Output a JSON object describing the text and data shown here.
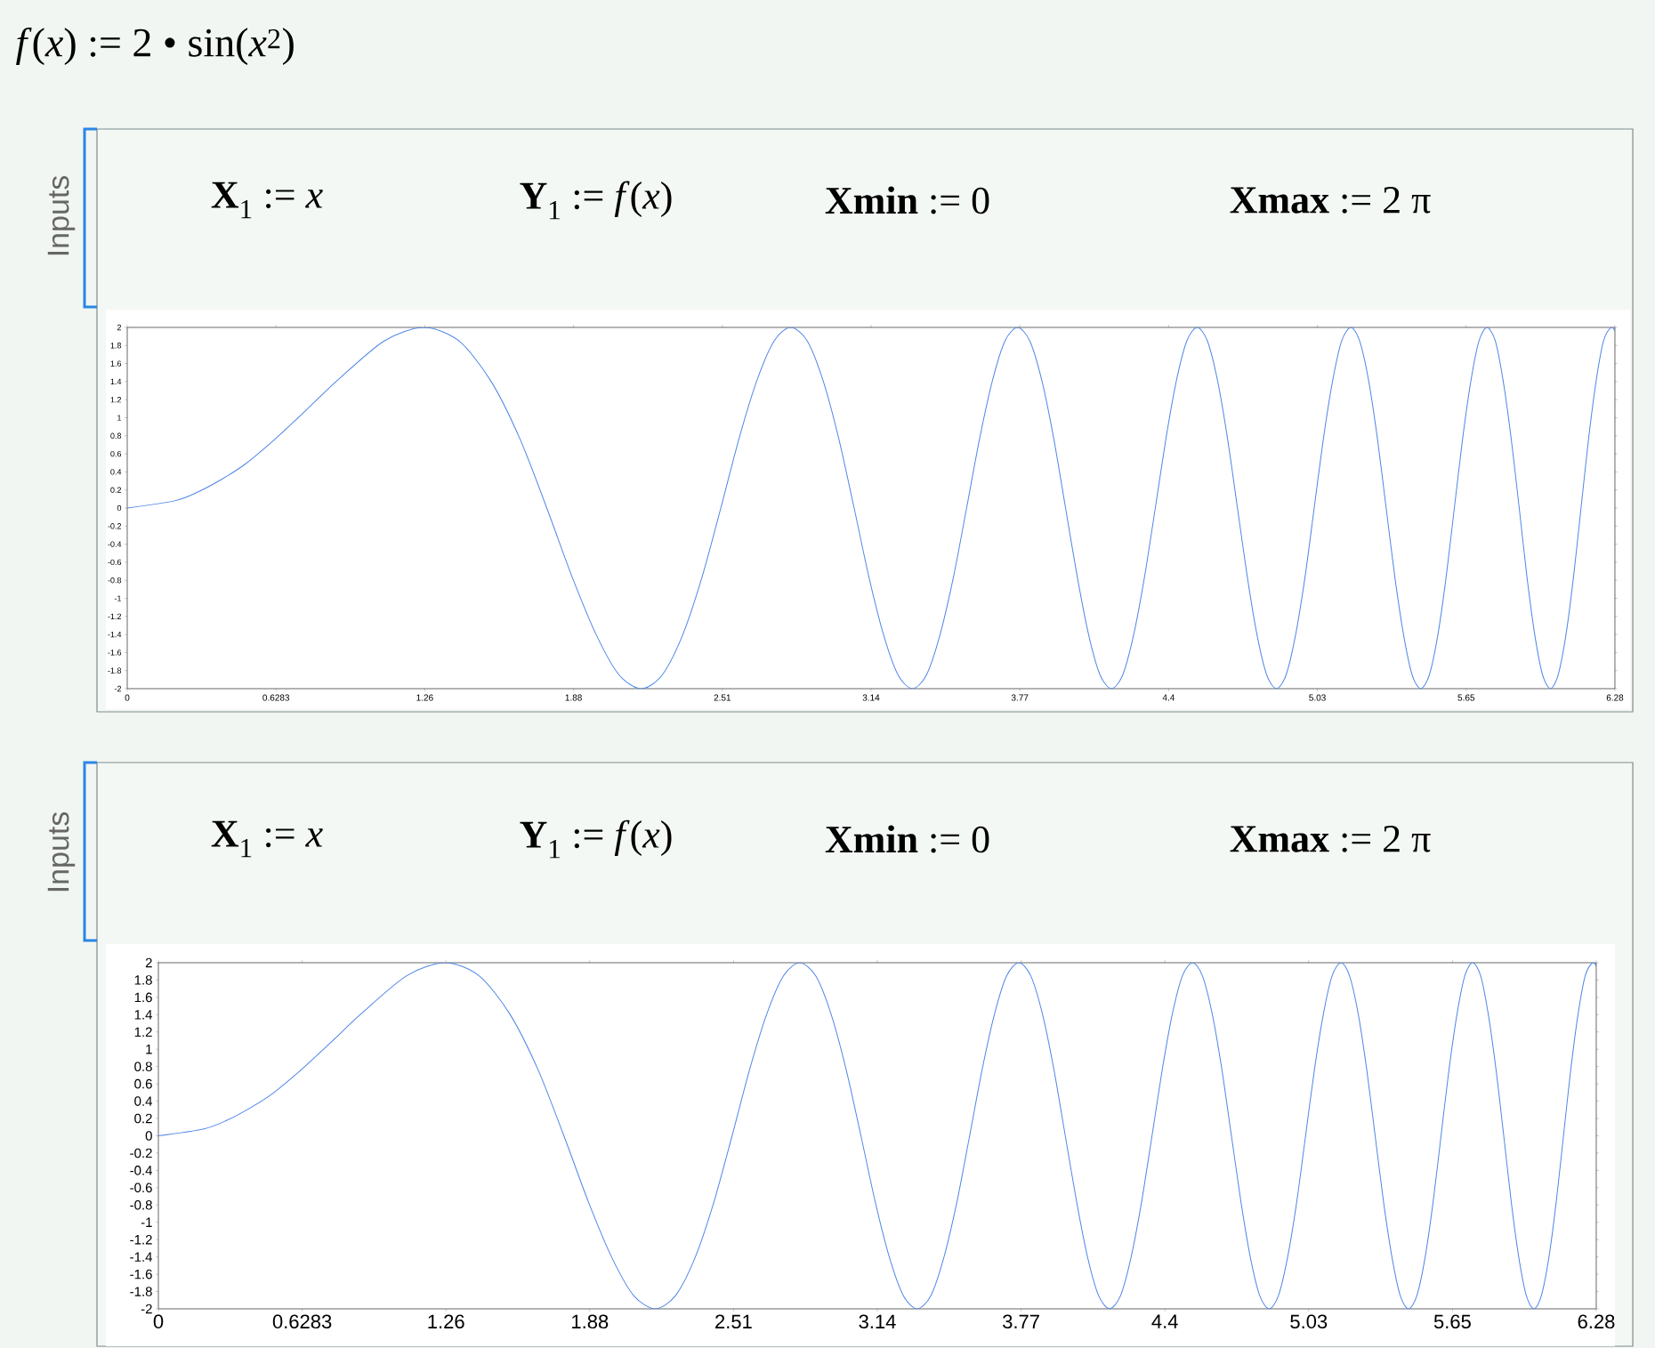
{
  "chart_data": [
    {
      "type": "line",
      "title": "*f*(*x*) := 2 • sin(*x*$^{2}$)",
      "annotations": [
        "Inputs",
        "**X**$_{1}$ := *x*",
        "**Y**$_{1}$ := *f*(*x*)",
        "**Xmin** := 0",
        "**Xmax** := 2 π"
      ],
      "series": [
        {
          "color": "#4f86e8",
          "x": [
            0,
            0.2,
            0.3,
            0.4,
            0.5,
            0.627,
            0.75,
            0.886,
            1.085,
            1.253,
            1.401,
            1.535,
            1.658,
            1.772,
            1.88,
            1.982,
            2.078,
            2.171,
            2.259,
            2.345,
            2.427,
            2.507,
            2.584,
            2.659,
            2.732,
            2.802,
            2.872,
            2.939,
            3.005,
            3.07,
            3.133,
            3.195,
            3.256,
            3.316,
            3.375,
            3.432,
            3.489,
            3.545,
            3.6,
            3.654,
            3.707,
            3.76,
            3.812,
            3.863,
            3.913,
            3.963,
            4.013,
            4.061,
            4.109,
            4.157,
            4.204,
            4.25,
            4.296,
            4.342,
            4.387,
            4.431,
            4.475,
            4.519,
            4.562,
            4.605,
            4.647,
            4.689,
            4.731,
            4.772,
            4.813,
            4.854,
            4.894,
            4.934,
            4.974,
            5.013,
            5.052,
            5.091,
            5.129,
            5.168,
            5.205,
            5.243,
            5.28,
            5.317,
            5.354,
            5.391,
            5.427,
            5.463,
            5.499,
            5.535,
            5.57,
            5.605,
            5.64,
            5.675,
            5.709,
            5.743,
            5.778,
            5.811,
            5.845,
            5.879,
            5.912,
            5.945,
            5.978,
            6.011,
            6.043,
            6.076,
            6.108,
            6.14,
            6.172,
            6.204,
            6.235,
            6.267,
            6.283
          ],
          "values": [
            0,
            0.08,
            0.18,
            0.32,
            0.49,
            0.77,
            1.07,
            1.41,
            1.85,
            2,
            1.85,
            1.41,
            0.77,
            0,
            -0.77,
            -1.41,
            -1.85,
            -2,
            -1.85,
            -1.41,
            -0.77,
            0,
            0.77,
            1.41,
            1.85,
            2,
            1.85,
            1.41,
            0.77,
            0,
            -0.77,
            -1.41,
            -1.85,
            -2,
            -1.85,
            -1.41,
            -0.77,
            0,
            0.77,
            1.41,
            1.85,
            2,
            1.85,
            1.41,
            0.77,
            0,
            -0.77,
            -1.41,
            -1.85,
            -2,
            -1.85,
            -1.41,
            -0.77,
            0,
            0.77,
            1.41,
            1.85,
            2,
            1.85,
            1.41,
            0.77,
            0,
            -0.77,
            -1.41,
            -1.85,
            -2,
            -1.85,
            -1.41,
            -0.77,
            0,
            0.77,
            1.41,
            1.85,
            2,
            1.85,
            1.41,
            0.77,
            0,
            -0.77,
            -1.41,
            -1.85,
            -2,
            -1.85,
            -1.41,
            -0.77,
            0,
            0.77,
            1.41,
            1.85,
            2,
            1.85,
            1.41,
            0.77,
            0,
            -0.77,
            -1.41,
            -1.85,
            -2,
            -1.85,
            -1.41,
            -0.77,
            0,
            0.77,
            1.41,
            1.85,
            2,
            1.96
          ]
        }
      ],
      "xlim": [
        0,
        6.2832
      ],
      "ylim": [
        -2,
        2
      ],
      "xticks": [
        0,
        0.6283,
        {
          "value": 1.2566,
          "label": "1.26"
        },
        {
          "value": 1.885,
          "label": "1.88"
        },
        {
          "value": 2.5133,
          "label": "2.51"
        },
        {
          "value": 3.1416,
          "label": "3.14"
        },
        {
          "value": 3.7699,
          "label": "3.77"
        },
        {
          "value": 4.3982,
          "label": "4.4"
        },
        {
          "value": 5.0265,
          "label": "5.03"
        },
        {
          "value": 5.6549,
          "label": "5.65"
        },
        {
          "value": 6.2832,
          "label": "6.28"
        }
      ],
      "yticks": [
        -2,
        -1.8,
        -1.6,
        -1.4,
        -1.2,
        -1,
        -0.8,
        -0.6,
        -0.4,
        -0.2,
        0,
        0.2,
        0.4,
        0.6,
        0.8,
        1,
        1.2,
        1.4,
        1.6,
        1.8,
        2
      ],
      "marker": "none",
      "line_style": "solid"
    },
    {
      "type": "line",
      "annotations": [
        "Inputs",
        "**X**$_{1}$ := *x*",
        "**Y**$_{1}$ := *f*(*x*)",
        "**Xmin** := 0",
        "**Xmax** := 2 π"
      ],
      "series": [
        {
          "color": "#4f86e8",
          "x": [
            0,
            0.2,
            0.3,
            0.4,
            0.5,
            0.627,
            0.75,
            0.886,
            1.085,
            1.253,
            1.401,
            1.535,
            1.658,
            1.772,
            1.88,
            1.982,
            2.078,
            2.171,
            2.259,
            2.345,
            2.427,
            2.507,
            2.584,
            2.659,
            2.732,
            2.802,
            2.872,
            2.939,
            3.005,
            3.07,
            3.133,
            3.195,
            3.256,
            3.316,
            3.375,
            3.432,
            3.489,
            3.545,
            3.6,
            3.654,
            3.707,
            3.76,
            3.812,
            3.863,
            3.913,
            3.963,
            4.013,
            4.061,
            4.109,
            4.157,
            4.204,
            4.25,
            4.296,
            4.342,
            4.387,
            4.431,
            4.475,
            4.519,
            4.562,
            4.605,
            4.647,
            4.689,
            4.731,
            4.772,
            4.813,
            4.854,
            4.894,
            4.934,
            4.974,
            5.013,
            5.052,
            5.091,
            5.129,
            5.168,
            5.205,
            5.243,
            5.28,
            5.317,
            5.354,
            5.391,
            5.427,
            5.463,
            5.499,
            5.535,
            5.57,
            5.605,
            5.64,
            5.675,
            5.709,
            5.743,
            5.778,
            5.811,
            5.845,
            5.879,
            5.912,
            5.945,
            5.978,
            6.011,
            6.043,
            6.076,
            6.108,
            6.14,
            6.172,
            6.204,
            6.235,
            6.267,
            6.283
          ],
          "values": [
            0,
            0.08,
            0.18,
            0.32,
            0.49,
            0.77,
            1.07,
            1.41,
            1.85,
            2,
            1.85,
            1.41,
            0.77,
            0,
            -0.77,
            -1.41,
            -1.85,
            -2,
            -1.85,
            -1.41,
            -0.77,
            0,
            0.77,
            1.41,
            1.85,
            2,
            1.85,
            1.41,
            0.77,
            0,
            -0.77,
            -1.41,
            -1.85,
            -2,
            -1.85,
            -1.41,
            -0.77,
            0,
            0.77,
            1.41,
            1.85,
            2,
            1.85,
            1.41,
            0.77,
            0,
            -0.77,
            -1.41,
            -1.85,
            -2,
            -1.85,
            -1.41,
            -0.77,
            0,
            0.77,
            1.41,
            1.85,
            2,
            1.85,
            1.41,
            0.77,
            0,
            -0.77,
            -1.41,
            -1.85,
            -2,
            -1.85,
            -1.41,
            -0.77,
            0,
            0.77,
            1.41,
            1.85,
            2,
            1.85,
            1.41,
            0.77,
            0,
            -0.77,
            -1.41,
            -1.85,
            -2,
            -1.85,
            -1.41,
            -0.77,
            0,
            0.77,
            1.41,
            1.85,
            2,
            1.85,
            1.41,
            0.77,
            0,
            -0.77,
            -1.41,
            -1.85,
            -2,
            -1.85,
            -1.41,
            -0.77,
            0,
            0.77,
            1.41,
            1.85,
            2,
            1.96
          ]
        }
      ],
      "xlim": [
        0,
        6.2832
      ],
      "ylim": [
        -2,
        2
      ],
      "xticks": [
        0,
        0.6283,
        {
          "value": 1.2566,
          "label": "1.26"
        },
        {
          "value": 1.885,
          "label": "1.88"
        },
        {
          "value": 2.5133,
          "label": "2.51"
        },
        {
          "value": 3.1416,
          "label": "3.14"
        },
        {
          "value": 3.7699,
          "label": "3.77"
        },
        {
          "value": 4.3982,
          "label": "4.4"
        },
        {
          "value": 5.0265,
          "label": "5.03"
        },
        {
          "value": 5.6549,
          "label": "5.65"
        },
        {
          "value": 6.2832,
          "label": "6.28"
        }
      ],
      "yticks": [
        -2,
        -1.8,
        -1.6,
        -1.4,
        -1.2,
        -1,
        -0.8,
        -0.6,
        -0.4,
        -0.2,
        0,
        0.2,
        0.4,
        0.6,
        0.8,
        1,
        1.2,
        1.4,
        1.6,
        1.8,
        2
      ],
      "marker": "none",
      "line_style": "solid"
    }
  ]
}
